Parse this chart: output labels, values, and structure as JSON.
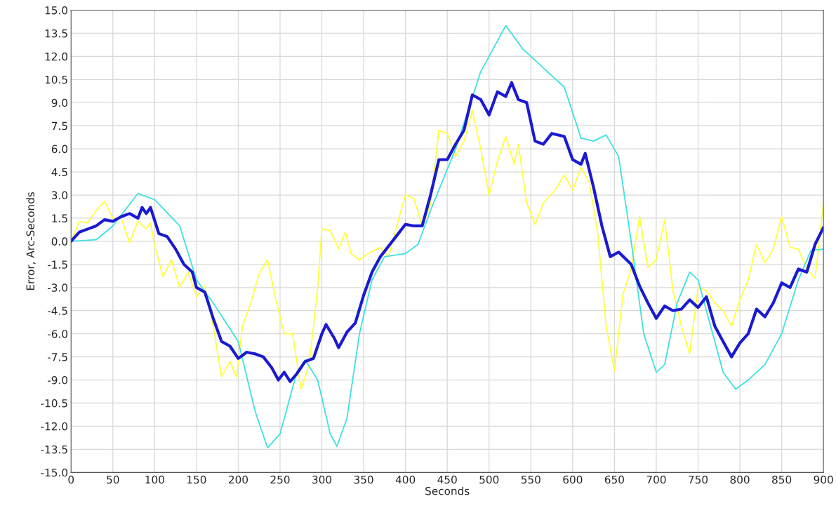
{
  "chart_data": {
    "type": "line",
    "xlabel": "Seconds",
    "ylabel": "Error, Arc-Seconds",
    "xlim": [
      0,
      900
    ],
    "xticks": [
      0,
      50,
      100,
      150,
      200,
      250,
      300,
      350,
      400,
      450,
      500,
      550,
      600,
      650,
      700,
      750,
      800,
      850,
      900
    ],
    "ylim": [
      -15,
      15
    ],
    "yticks": [
      {
        "value": -15,
        "label": "-15.0"
      },
      {
        "value": -13.5,
        "label": "-13.5"
      },
      {
        "value": -12,
        "label": "-12.0"
      },
      {
        "value": -10.5,
        "label": "-10.5"
      },
      {
        "value": -9,
        "label": "-9.0"
      },
      {
        "value": -7.5,
        "label": "-7.5"
      },
      {
        "value": -6,
        "label": "-6.0"
      },
      {
        "value": -4.5,
        "label": "-4.5"
      },
      {
        "value": -3,
        "label": "-3.0"
      },
      {
        "value": -1.5,
        "label": "-1.5"
      },
      {
        "value": 0,
        "label": "0.0"
      },
      {
        "value": 1.5,
        "label": "1.5"
      },
      {
        "value": 3,
        "label": "3.0"
      },
      {
        "value": 4.5,
        "label": "4.5"
      },
      {
        "value": 6,
        "label": "6.0"
      },
      {
        "value": 7.5,
        "label": "7.5"
      },
      {
        "value": 9,
        "label": "9.0"
      },
      {
        "value": 10.5,
        "label": "10.5"
      },
      {
        "value": 12,
        "label": "12.0"
      },
      {
        "value": 13.5,
        "label": "13.5"
      },
      {
        "value": 15,
        "label": "15.0"
      }
    ],
    "grid": true,
    "marker": "none",
    "line_style": "solid",
    "legend": false,
    "series": [
      {
        "color": "#ffff40",
        "x": [
          0,
          10,
          20,
          30,
          40,
          50,
          60,
          70,
          80,
          90,
          95,
          100,
          110,
          120,
          130,
          140,
          150,
          160,
          170,
          180,
          190,
          198,
          205,
          215,
          225,
          235,
          245,
          255,
          265,
          275,
          285,
          295,
          300,
          310,
          320,
          328,
          335,
          345,
          355,
          370,
          380,
          390,
          400,
          410,
          420,
          430,
          440,
          450,
          460,
          470,
          480,
          490,
          500,
          510,
          520,
          530,
          535,
          545,
          555,
          565,
          580,
          590,
          600,
          610,
          620,
          630,
          640,
          650,
          660,
          670,
          680,
          690,
          700,
          710,
          720,
          730,
          740,
          750,
          760,
          770,
          780,
          790,
          800,
          810,
          820,
          830,
          840,
          850,
          860,
          870,
          880,
          890,
          900
        ],
        "values": [
          0,
          1.3,
          1.2,
          2.0,
          2.6,
          1.5,
          1.5,
          -0.1,
          1.3,
          0.8,
          1.2,
          -0.3,
          -2.3,
          -1.2,
          -3.0,
          -2.0,
          -3.6,
          -2.9,
          -5.5,
          -8.8,
          -7.8,
          -8.8,
          -5.5,
          -4.0,
          -2.1,
          -1.2,
          -3.8,
          -6.0,
          -6.0,
          -9.6,
          -8.0,
          -3.0,
          0.8,
          0.7,
          -0.5,
          0.6,
          -0.8,
          -1.2,
          -0.8,
          -0.4,
          -1.0,
          1.1,
          3.0,
          2.8,
          1.0,
          2.4,
          7.2,
          7.0,
          5.5,
          6.5,
          8.5,
          6.0,
          3.0,
          5.2,
          6.8,
          5.0,
          6.3,
          2.5,
          1.1,
          2.5,
          3.4,
          4.3,
          3.3,
          4.8,
          3.8,
          0.5,
          -5.5,
          -8.4,
          -3.5,
          -1.8,
          1.6,
          -1.7,
          -1.2,
          1.4,
          -3.2,
          -5.5,
          -7.3,
          -3.0,
          -3.2,
          -4.0,
          -4.5,
          -5.5,
          -3.8,
          -2.5,
          -0.2,
          -1.4,
          -0.5,
          1.6,
          -0.4,
          -0.5,
          -1.8,
          -2.4,
          2.5
        ]
      },
      {
        "color": "#40e0e0",
        "x": [
          0,
          30,
          50,
          80,
          100,
          130,
          150,
          170,
          200,
          220,
          235,
          250,
          270,
          280,
          295,
          310,
          318,
          330,
          345,
          360,
          375,
          400,
          415,
          430,
          460,
          490,
          520,
          540,
          560,
          590,
          610,
          625,
          640,
          655,
          670,
          685,
          700,
          710,
          725,
          740,
          750,
          765,
          780,
          795,
          810,
          830,
          850,
          870,
          885,
          900
        ],
        "values": [
          0,
          0.1,
          1.0,
          3.1,
          2.7,
          1.0,
          -2.5,
          -4.0,
          -6.5,
          -11,
          -13.4,
          -12.5,
          -8.5,
          -7.7,
          -9,
          -12.5,
          -13.3,
          -11.5,
          -6,
          -2.5,
          -1,
          -0.8,
          -0.2,
          2,
          6,
          11,
          14,
          12.5,
          11.5,
          10,
          6.7,
          6.5,
          6.9,
          5.5,
          0,
          -6,
          -8.5,
          -8.0,
          -4,
          -2,
          -2.5,
          -5.5,
          -8.5,
          -9.6,
          -9.0,
          -8,
          -6,
          -2.5,
          -0.6,
          -0.5
        ]
      },
      {
        "color": "#1a1ad0",
        "x": [
          0,
          10,
          20,
          30,
          40,
          50,
          60,
          70,
          80,
          85,
          90,
          95,
          105,
          115,
          125,
          135,
          145,
          150,
          160,
          170,
          180,
          190,
          200,
          210,
          220,
          230,
          240,
          248,
          255,
          262,
          270,
          280,
          290,
          300,
          305,
          315,
          320,
          330,
          340,
          350,
          360,
          370,
          380,
          390,
          400,
          410,
          420,
          430,
          440,
          450,
          460,
          470,
          480,
          490,
          500,
          510,
          520,
          527,
          535,
          545,
          555,
          565,
          575,
          590,
          600,
          610,
          615,
          625,
          635,
          645,
          655,
          670,
          680,
          690,
          700,
          710,
          720,
          730,
          740,
          750,
          760,
          770,
          780,
          790,
          800,
          810,
          820,
          830,
          840,
          850,
          860,
          870,
          880,
          890,
          900
        ],
        "values": [
          0,
          0.6,
          0.8,
          1.0,
          1.4,
          1.3,
          1.6,
          1.8,
          1.5,
          2.2,
          1.8,
          2.2,
          0.5,
          0.3,
          -0.5,
          -1.5,
          -2.0,
          -3.0,
          -3.3,
          -5,
          -6.5,
          -6.8,
          -7.6,
          -7.2,
          -7.3,
          -7.5,
          -8.2,
          -9.0,
          -8.5,
          -9.1,
          -8.6,
          -7.8,
          -7.6,
          -6.0,
          -5.4,
          -6.3,
          -6.9,
          -5.9,
          -5.3,
          -3.5,
          -2.0,
          -1.0,
          -0.3,
          0.4,
          1.1,
          1.0,
          1.0,
          3.0,
          5.3,
          5.3,
          6.3,
          7.2,
          9.5,
          9.2,
          8.2,
          9.7,
          9.4,
          10.3,
          9.2,
          9.0,
          6.5,
          6.3,
          7.0,
          6.8,
          5.3,
          5.0,
          5.7,
          3.5,
          1.0,
          -1.0,
          -0.7,
          -1.5,
          -2.9,
          -4.0,
          -5.0,
          -4.2,
          -4.5,
          -4.4,
          -3.8,
          -4.3,
          -3.6,
          -5.5,
          -6.5,
          -7.5,
          -6.6,
          -6.0,
          -4.4,
          -4.9,
          -4.0,
          -2.7,
          -3.0,
          -1.8,
          -2.0,
          -0.2,
          0.9
        ]
      }
    ]
  }
}
